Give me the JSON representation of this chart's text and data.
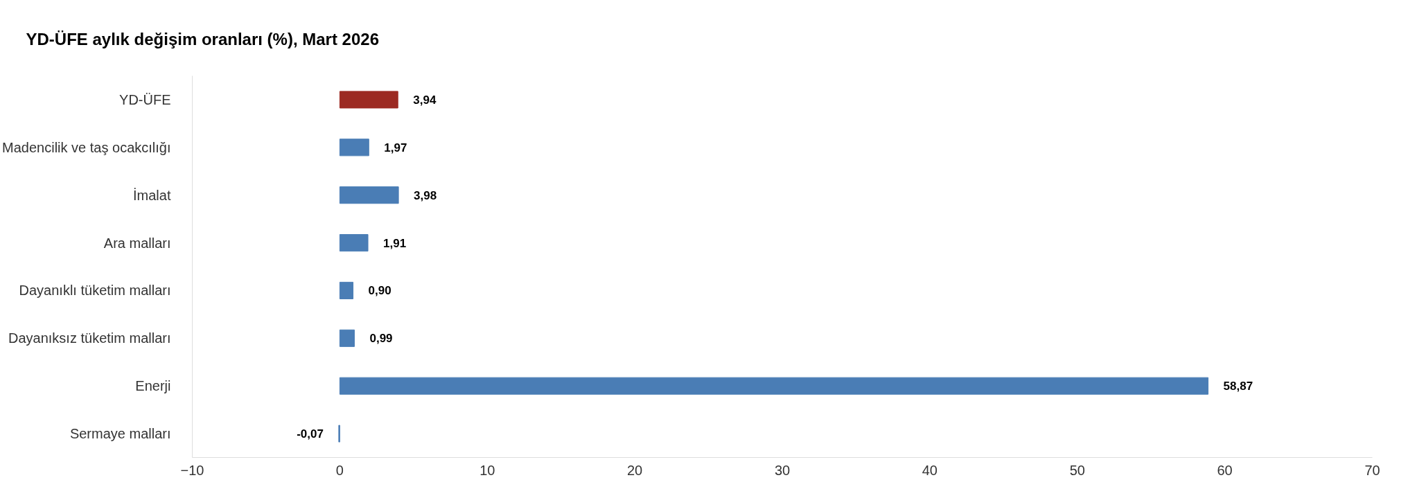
{
  "chart_data": {
    "type": "bar",
    "orientation": "horizontal",
    "title": "YD-ÜFE aylık değişim oranları (%), Mart 2026",
    "categories": [
      "YD-ÜFE",
      "Madencilik ve taş ocakcılığı",
      "İmalat",
      "Ara malları",
      "Dayanıklı tüketim malları",
      "Dayanıksız tüketim malları",
      "Enerji",
      "Sermaye malları"
    ],
    "values": [
      3.94,
      1.97,
      3.98,
      1.91,
      0.9,
      0.99,
      58.87,
      -0.07
    ],
    "value_labels": [
      "3,94",
      "1,97",
      "3,98",
      "1,91",
      "0,90",
      "0,99",
      "58,87",
      "-0,07"
    ],
    "colors": [
      "#9c2a22",
      "#4a7db5",
      "#4a7db5",
      "#4a7db5",
      "#4a7db5",
      "#4a7db5",
      "#4a7db5",
      "#4a7db5"
    ],
    "xlim": [
      -10,
      70
    ],
    "xticks": [
      -10,
      0,
      10,
      20,
      30,
      40,
      50,
      60,
      70
    ],
    "grid": false
  }
}
